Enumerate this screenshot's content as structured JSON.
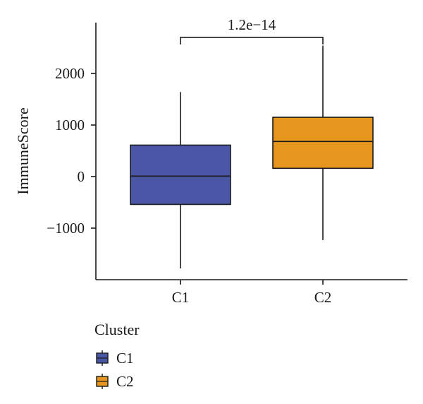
{
  "chart_data": {
    "type": "boxplot",
    "xlabel": "",
    "ylabel": "ImmuneScore",
    "ylim": [
      -2000,
      3000
    ],
    "yticks": [
      -1000,
      0,
      1000,
      2000
    ],
    "ytick_labels": [
      "−1000",
      "0",
      "1000",
      "2000"
    ],
    "categories": [
      "C1",
      "C2"
    ],
    "boxes": [
      {
        "category": "C1",
        "whisker_low": -1780,
        "q1": -540,
        "median": 10,
        "q3": 610,
        "whisker_high": 1640,
        "color": "#4a56a6"
      },
      {
        "category": "C2",
        "whisker_low": -1230,
        "q1": 160,
        "median": 680,
        "q3": 1150,
        "whisker_high": 2540,
        "color": "#e6961e"
      }
    ],
    "comparison": {
      "groups": [
        "C1",
        "C2"
      ],
      "label": "1.2e−14",
      "bracket_y": 2700
    },
    "legend": {
      "title": "Cluster",
      "entries": [
        {
          "label": "C1",
          "color": "#4a56a6"
        },
        {
          "label": "C2",
          "color": "#e6961e"
        }
      ]
    }
  }
}
